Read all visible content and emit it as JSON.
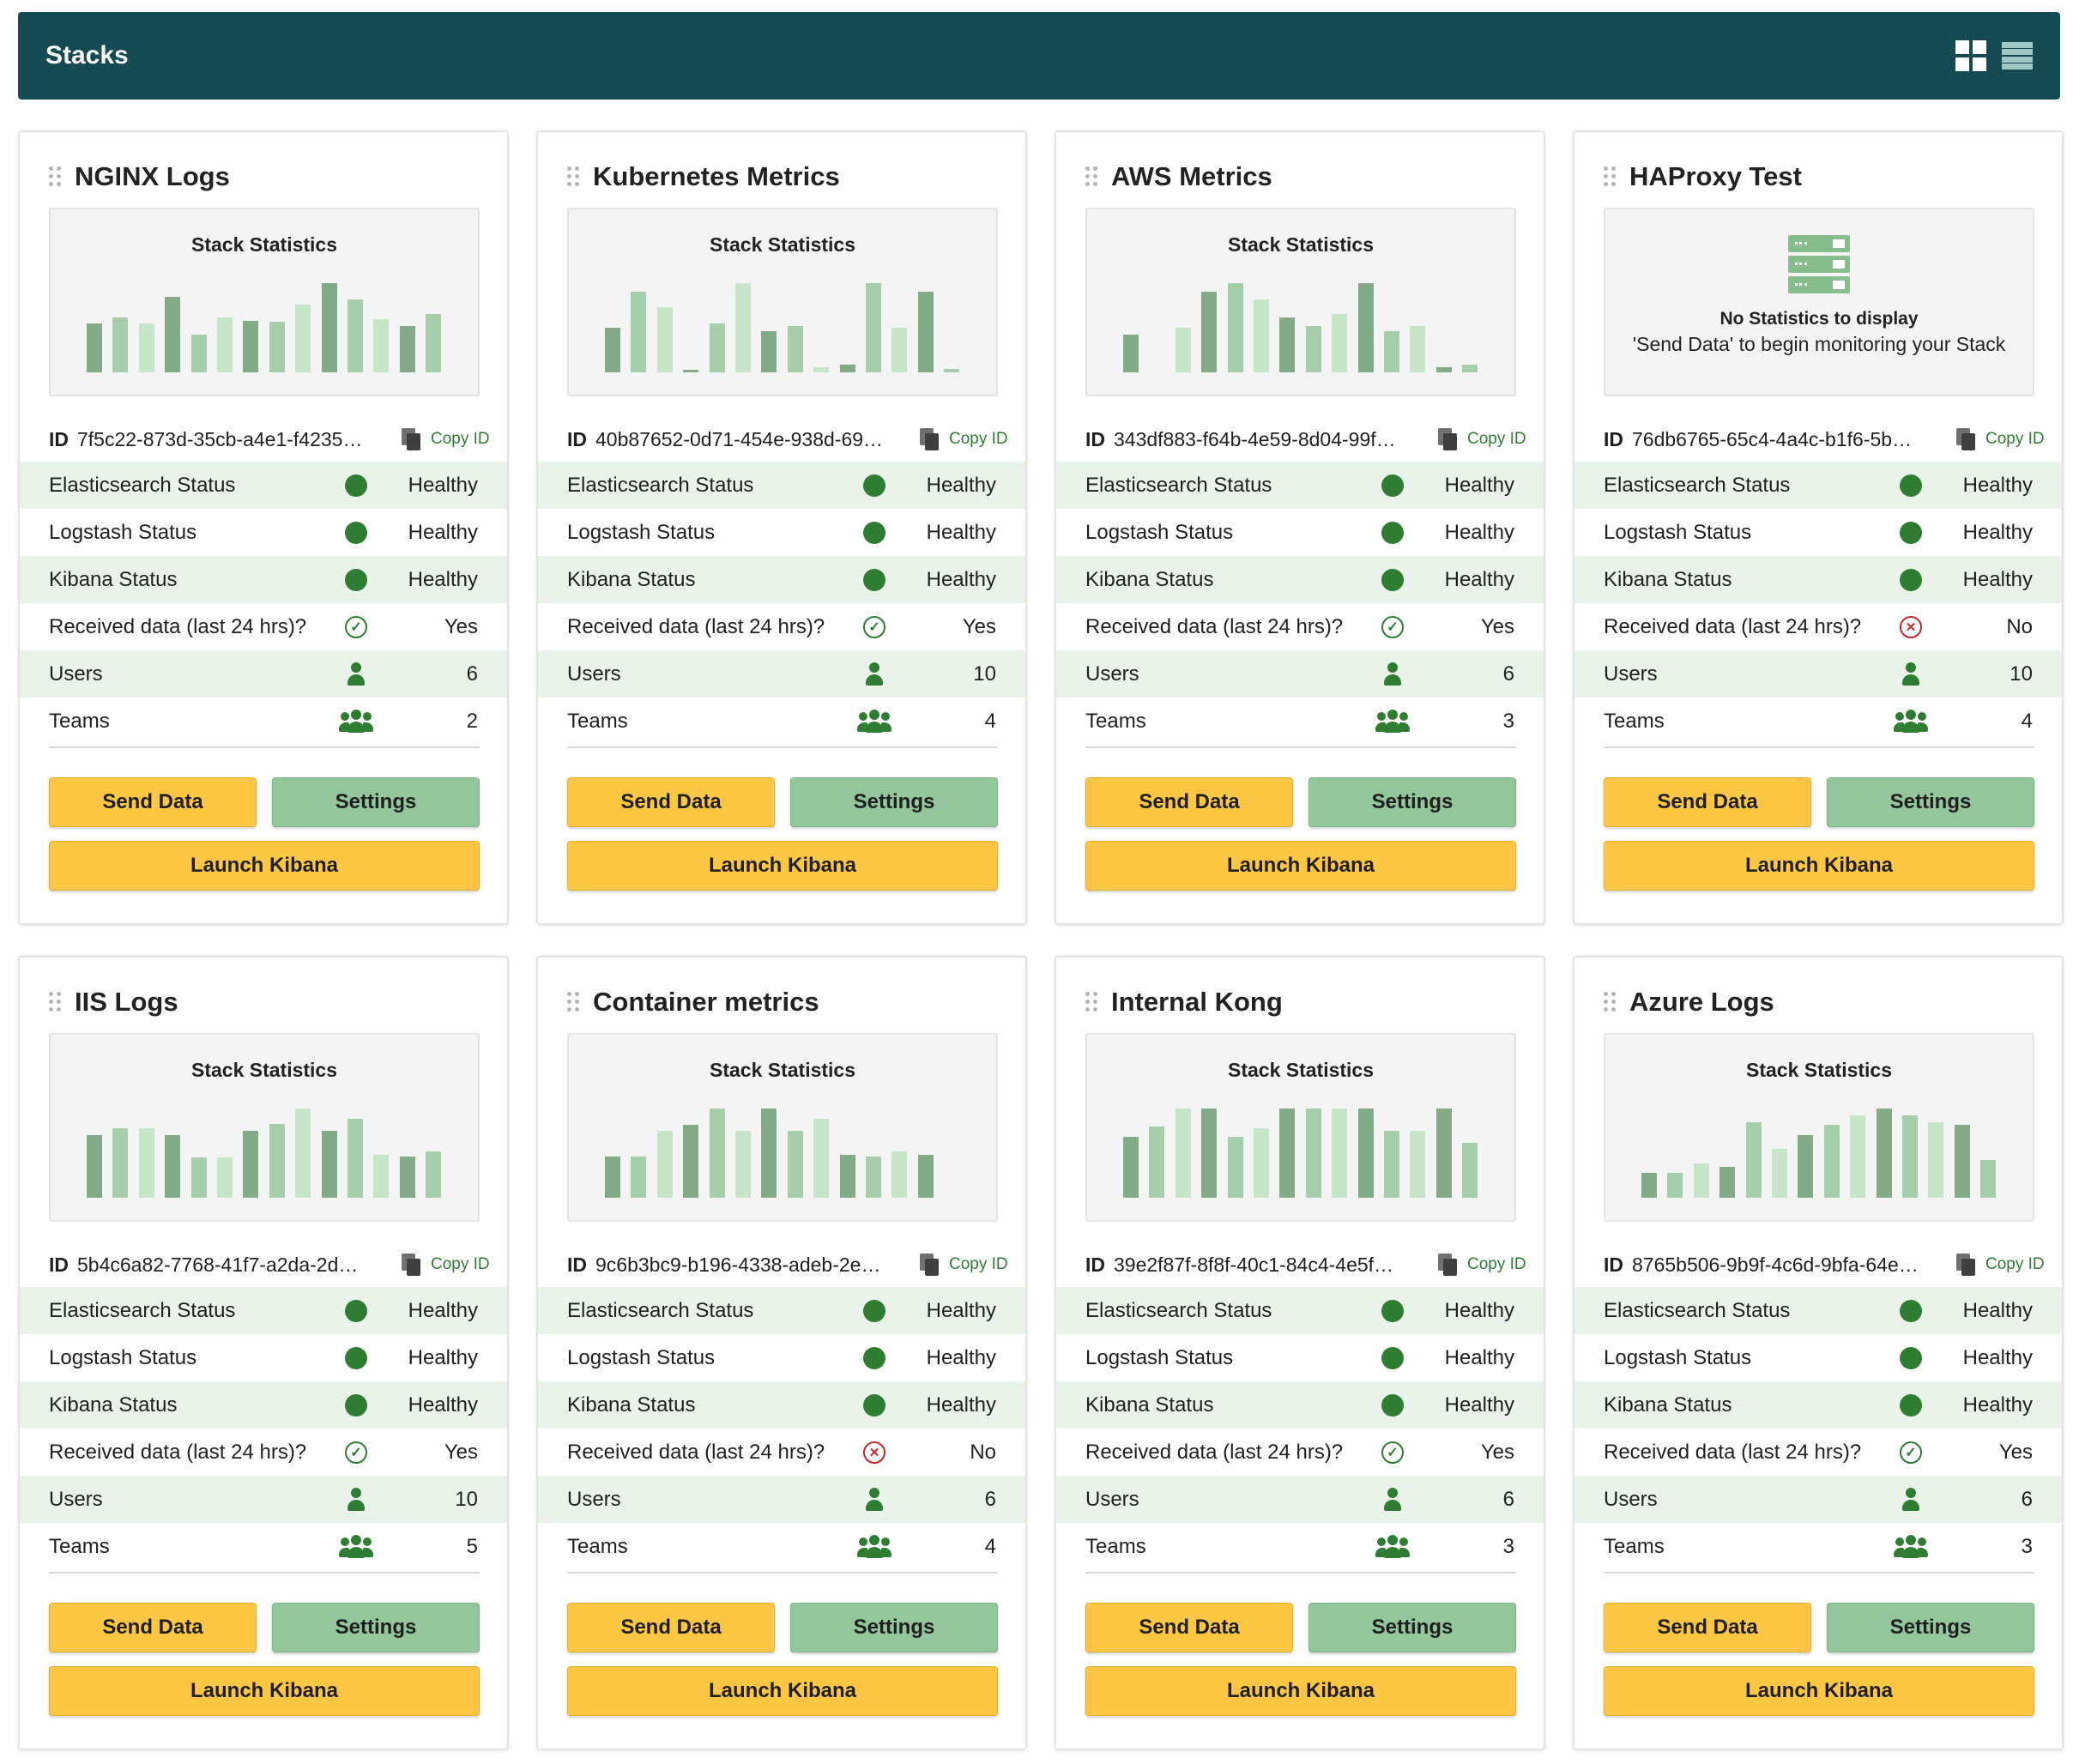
{
  "header": {
    "title": "Stacks"
  },
  "colors": {
    "header_bg": "#164a52",
    "bar_dark": "#84ab88",
    "bar_mid": "#a6ceaa",
    "bar_light": "#c6e5c9",
    "accent_yellow": "#fdc743",
    "settings_green": "#93c69b",
    "healthy": "#2e7d32",
    "error": "#c62828"
  },
  "labels": {
    "stats_title": "Stack Statistics",
    "id": "ID",
    "copy": "Copy ID",
    "es": "Elasticsearch Status",
    "ls": "Logstash Status",
    "kb": "Kibana Status",
    "recv": "Received data (last 24 hrs)?",
    "users": "Users",
    "teams": "Teams",
    "send": "Send Data",
    "settings": "Settings",
    "launch": "Launch Kibana",
    "no_stats_title": "No Statistics to display",
    "no_stats_sub": "'Send Data' to begin monitoring your Stack"
  },
  "stacks": [
    {
      "title": "NGINX Logs",
      "id": "7f5c22-873d-35cb-a4e1-f4235…",
      "es": "Healthy",
      "ls": "Healthy",
      "kb": "Healthy",
      "recv": "Yes",
      "users": "6",
      "teams": "2",
      "bars": [
        0.55,
        0.62,
        0.55,
        0.85,
        0.42,
        0.62,
        0.58,
        0.57,
        0.76,
        1.0,
        0.82,
        0.6,
        0.52,
        0.65
      ]
    },
    {
      "title": "Kubernetes Metrics",
      "id": "40b87652-0d71-454e-938d-69…",
      "es": "Healthy",
      "ls": "Healthy",
      "kb": "Healthy",
      "recv": "Yes",
      "users": "10",
      "teams": "4",
      "bars": [
        0.5,
        0.9,
        0.73,
        0.03,
        0.55,
        1.0,
        0.46,
        0.52,
        0.06,
        0.09,
        1.0,
        0.5,
        0.9,
        0.04
      ]
    },
    {
      "title": "AWS Metrics",
      "id": "343df883-f64b-4e59-8d04-99f…",
      "es": "Healthy",
      "ls": "Healthy",
      "kb": "Healthy",
      "recv": "Yes",
      "users": "6",
      "teams": "3",
      "bars": [
        0.42,
        0.0,
        0.5,
        0.9,
        1.0,
        0.82,
        0.62,
        0.52,
        0.65,
        1.0,
        0.46,
        0.52,
        0.06,
        0.09
      ]
    },
    {
      "title": "HAProxy Test",
      "id": "76db6765-65c4-4a4c-b1f6-5b…",
      "es": "Healthy",
      "ls": "Healthy",
      "kb": "Healthy",
      "recv": "No",
      "users": "10",
      "teams": "4",
      "bars": []
    },
    {
      "title": "IIS Logs",
      "id": "5b4c6a82-7768-41f7-a2da-2d…",
      "es": "Healthy",
      "ls": "Healthy",
      "kb": "Healthy",
      "recv": "Yes",
      "users": "10",
      "teams": "5",
      "bars": [
        0.7,
        0.78,
        0.78,
        0.7,
        0.45,
        0.45,
        0.75,
        0.83,
        1.0,
        0.75,
        0.88,
        0.48,
        0.46,
        0.52
      ]
    },
    {
      "title": "Container metrics",
      "id": "9c6b3bc9-b196-4338-adeb-2e…",
      "es": "Healthy",
      "ls": "Healthy",
      "kb": "Healthy",
      "recv": "No",
      "users": "6",
      "teams": "4",
      "bars": [
        0.46,
        0.46,
        0.75,
        0.82,
        1.0,
        0.75,
        1.0,
        0.75,
        0.88,
        0.48,
        0.46,
        0.52,
        0.48,
        0.0
      ]
    },
    {
      "title": "Internal Kong",
      "id": "39e2f87f-8f8f-40c1-84c4-4e5f…",
      "es": "Healthy",
      "ls": "Healthy",
      "kb": "Healthy",
      "recv": "Yes",
      "users": "6",
      "teams": "3",
      "bars": [
        0.68,
        0.8,
        1.0,
        1.0,
        0.68,
        0.78,
        1.0,
        1.0,
        1.0,
        1.0,
        0.75,
        0.75,
        1.0,
        0.62
      ]
    },
    {
      "title": "Azure Logs",
      "id": "8765b506-9b9f-4c6d-9bfa-64e…",
      "es": "Healthy",
      "ls": "Healthy",
      "kb": "Healthy",
      "recv": "Yes",
      "users": "6",
      "teams": "3",
      "bars": [
        0.28,
        0.28,
        0.38,
        0.35,
        0.85,
        0.55,
        0.7,
        0.82,
        0.92,
        1.0,
        0.92,
        0.85,
        0.82,
        0.42
      ]
    }
  ]
}
